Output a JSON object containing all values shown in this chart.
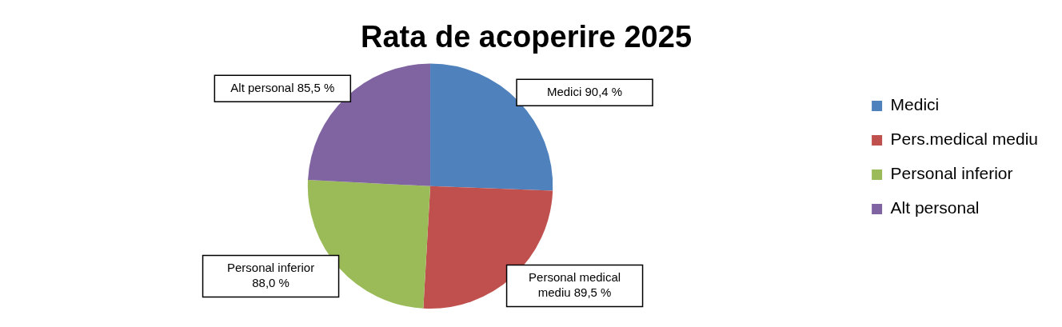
{
  "chart_data": {
    "type": "pie",
    "title": "Rata de acoperire 2025",
    "categories": [
      "Medici",
      "Pers.medical mediu",
      "Personal inferior",
      "Alt personal"
    ],
    "values": [
      90.4,
      89.5,
      88.0,
      85.5
    ],
    "value_labels": [
      "Medici 90,4 %",
      "Personal medical mediu 89,5 %",
      "Personal inferior 88,0 %",
      "Alt personal 85,5 %"
    ],
    "colors": [
      "#4f81bd",
      "#c0504d",
      "#9bbb59",
      "#8064a2"
    ],
    "legend": "right"
  }
}
